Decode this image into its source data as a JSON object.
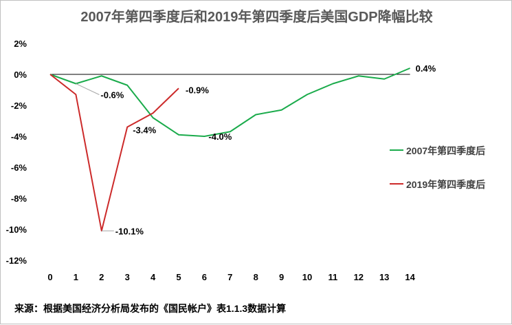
{
  "title": "2007年第四季度后和2019年第四季度后美国GDP降幅比较",
  "source": "来源：根据美国经济分析局发布的《国民帐户》表1.1.3数据计算",
  "chart_data": {
    "type": "line",
    "title": "2007年第四季度后和2019年第四季度后美国GDP降幅比较",
    "xlabel": "",
    "ylabel": "",
    "x": [
      0,
      1,
      2,
      3,
      4,
      5,
      6,
      7,
      8,
      9,
      10,
      11,
      12,
      13,
      14
    ],
    "ylim": [
      -12,
      2
    ],
    "y_ticks": [
      2,
      0,
      -2,
      -4,
      -6,
      -8,
      -10,
      -12
    ],
    "y_tick_labels": [
      "2%",
      "0%",
      "-2%",
      "-4%",
      "-6%",
      "-8%",
      "-10%",
      "-12%"
    ],
    "x_tick_labels": [
      "0",
      "1",
      "2",
      "3",
      "4",
      "5",
      "6",
      "7",
      "8",
      "9",
      "10",
      "11",
      "12",
      "13",
      "14"
    ],
    "grid": false,
    "legend_position": "right",
    "series": [
      {
        "name": "2007年第四季度后",
        "color": "#1aab4b",
        "x": [
          0,
          1,
          2,
          3,
          4,
          5,
          6,
          7,
          8,
          9,
          10,
          11,
          12,
          13,
          14
        ],
        "values": [
          0,
          -0.6,
          -0.1,
          -0.7,
          -2.8,
          -3.9,
          -4.0,
          -3.7,
          -2.6,
          -2.3,
          -1.3,
          -0.6,
          -0.1,
          -0.3,
          0.4
        ]
      },
      {
        "name": "2019年第四季度后",
        "color": "#cc2a2a",
        "x": [
          0,
          1,
          2,
          3,
          4,
          5
        ],
        "values": [
          0,
          -1.3,
          -10.1,
          -3.4,
          -2.5,
          -0.9
        ]
      }
    ],
    "annotations": [
      {
        "series": 0,
        "x": 1,
        "value": -0.6,
        "text": "-0.6%",
        "leader": true
      },
      {
        "series": 0,
        "x": 6,
        "value": -4.0,
        "text": "-4.0%",
        "leader": false
      },
      {
        "series": 0,
        "x": 14,
        "value": 0.4,
        "text": "0.4%",
        "leader": false
      },
      {
        "series": 1,
        "x": 2,
        "value": -10.1,
        "text": "-10.1%",
        "leader": true
      },
      {
        "series": 1,
        "x": 3,
        "value": -3.4,
        "text": "-3.4%",
        "leader": false
      },
      {
        "series": 1,
        "x": 5,
        "value": -0.9,
        "text": "-0.9%",
        "leader": false
      }
    ]
  }
}
